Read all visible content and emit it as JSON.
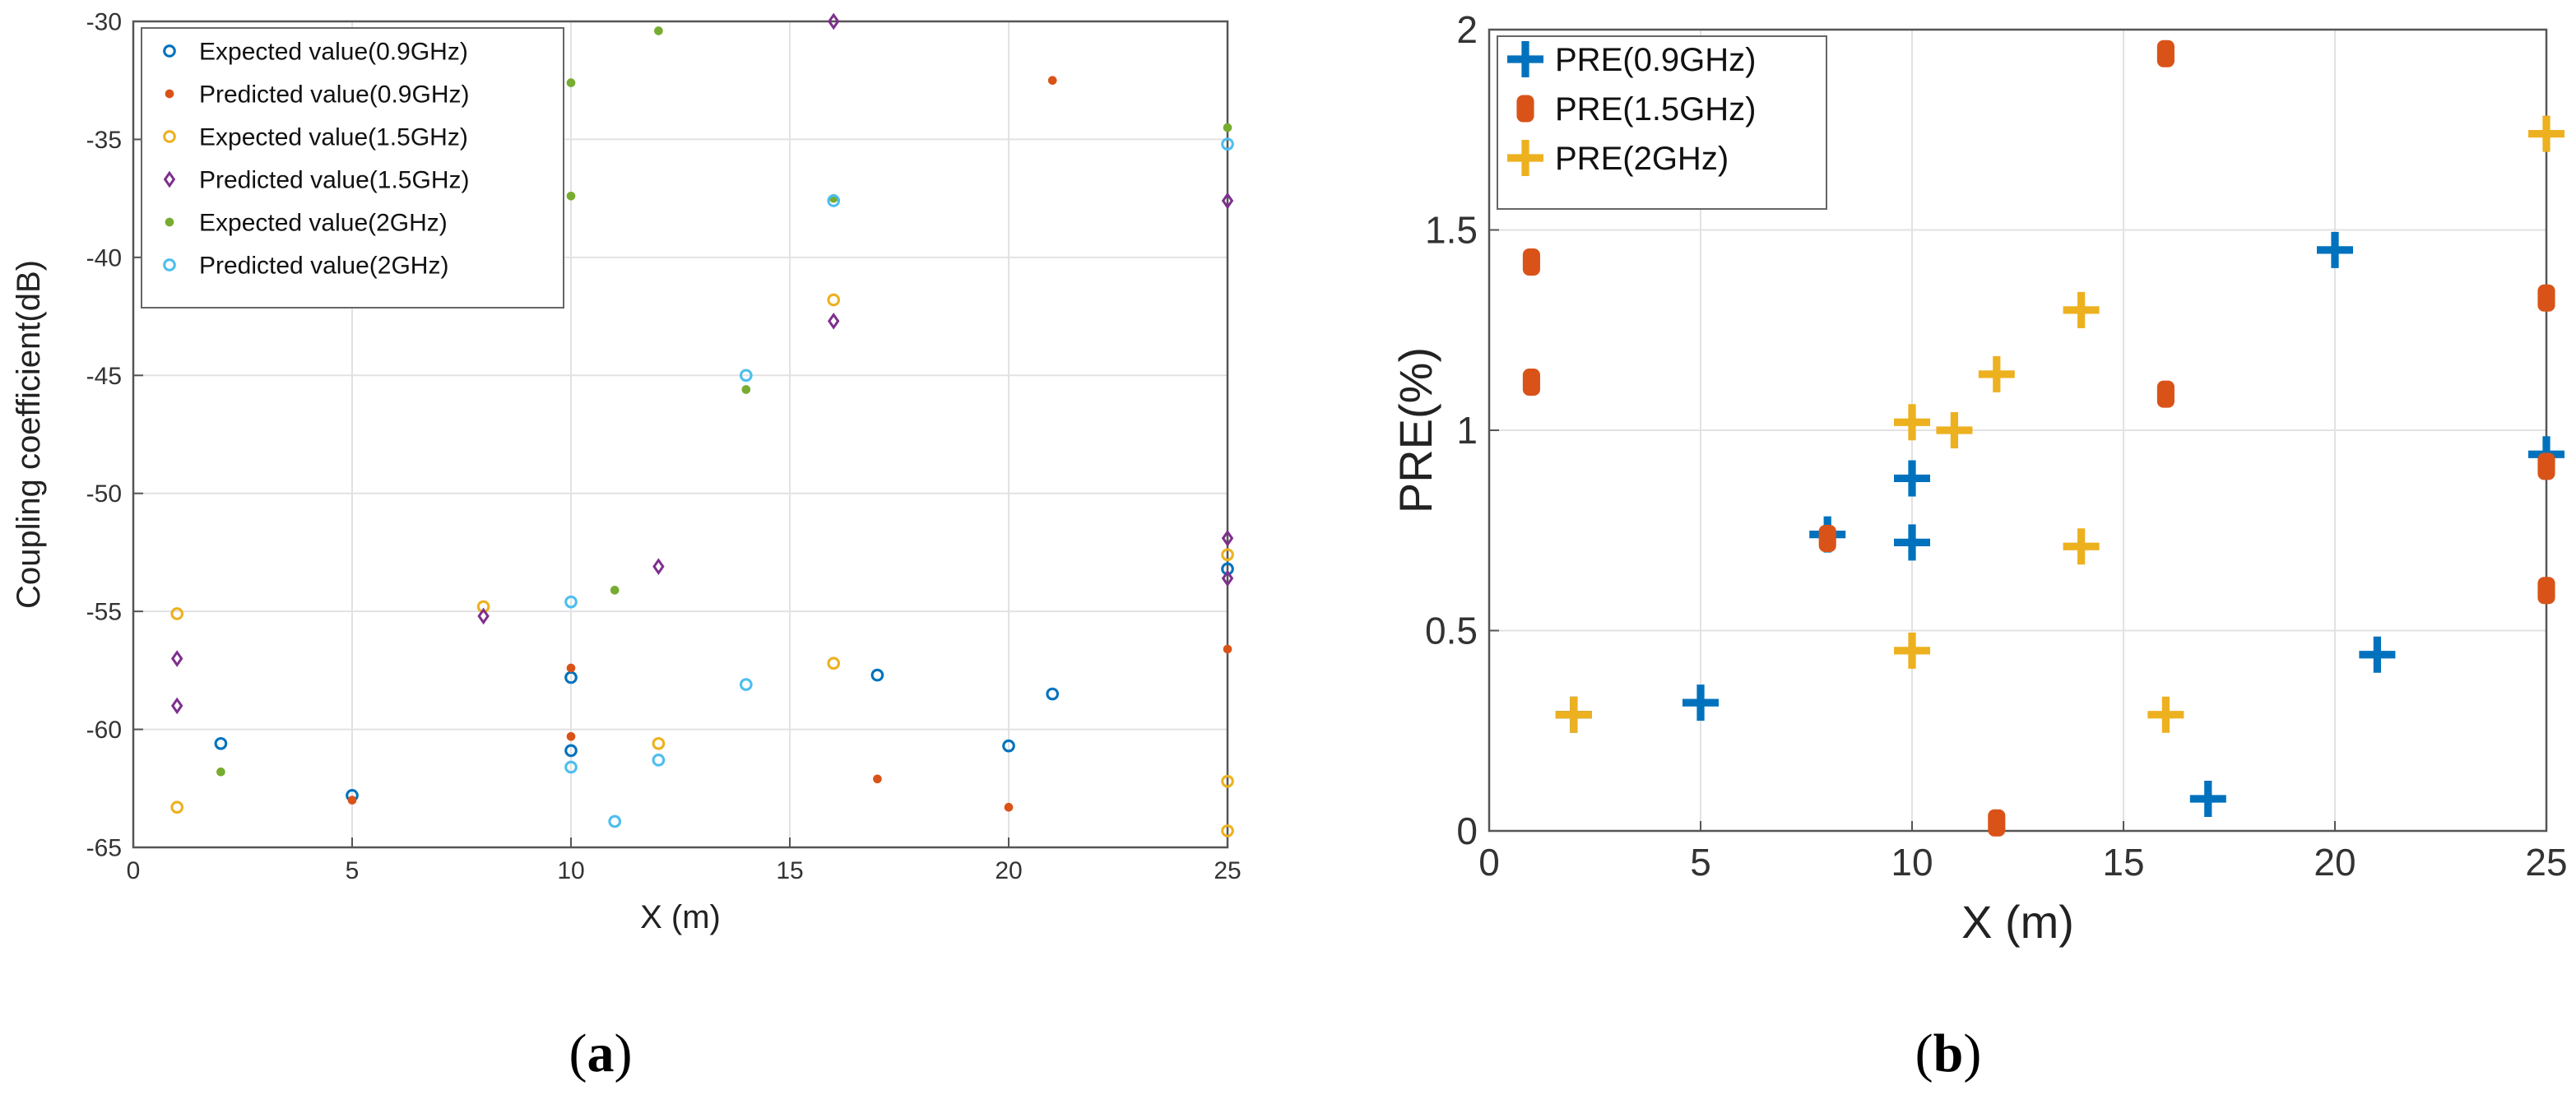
{
  "chart_data": [
    {
      "type": "scatter",
      "panel_label": "(a)",
      "panel_letter": "a",
      "xlabel": "X (m)",
      "ylabel": "Coupling coefficient(dB)",
      "xlim": [
        0,
        25
      ],
      "ylim": [
        -65,
        -30
      ],
      "xticks": [
        0,
        5,
        10,
        15,
        20,
        25
      ],
      "yticks": [
        -30,
        -35,
        -40,
        -45,
        -50,
        -55,
        -60,
        -65
      ],
      "grid": true,
      "legend_position": "top-left",
      "series": [
        {
          "name": "Expected value(0.9GHz)",
          "marker": "circle",
          "color": "#0072BD",
          "points": [
            [
              2,
              -60.6
            ],
            [
              5,
              -62.8
            ],
            [
              10,
              -57.8
            ],
            [
              10,
              -60.9
            ],
            [
              17,
              -57.7
            ],
            [
              20,
              -60.7
            ],
            [
              21,
              -58.5
            ],
            [
              25,
              -53.2
            ]
          ]
        },
        {
          "name": "Predicted value(0.9GHz)",
          "marker": "dot",
          "color": "#D95319",
          "points": [
            [
              5,
              -63.0
            ],
            [
              10,
              -57.4
            ],
            [
              10,
              -60.3
            ],
            [
              17,
              -62.1
            ],
            [
              20,
              -63.3
            ],
            [
              21,
              -32.5
            ],
            [
              25,
              -56.6
            ]
          ]
        },
        {
          "name": "Expected value(1.5GHz)",
          "marker": "circle",
          "color": "#EDB120",
          "points": [
            [
              1,
              -55.1
            ],
            [
              1,
              -63.3
            ],
            [
              8,
              -54.8
            ],
            [
              12,
              -60.6
            ],
            [
              16,
              -41.8
            ],
            [
              16,
              -57.2
            ],
            [
              25,
              -52.6
            ],
            [
              25,
              -62.2
            ],
            [
              25,
              -64.3
            ]
          ]
        },
        {
          "name": "Predicted value(1.5GHz)",
          "marker": "diamond",
          "color": "#7E2F8E",
          "points": [
            [
              1,
              -57.0
            ],
            [
              1,
              -59.0
            ],
            [
              8,
              -55.2
            ],
            [
              12,
              -53.1
            ],
            [
              16,
              -30.0
            ],
            [
              16,
              -42.7
            ],
            [
              25,
              -37.6
            ],
            [
              25,
              -51.9
            ],
            [
              25,
              -53.6
            ]
          ]
        },
        {
          "name": "Expected value(2GHz)",
          "marker": "dot",
          "color": "#77AC30",
          "points": [
            [
              2,
              -61.8
            ],
            [
              10,
              -32.6
            ],
            [
              10,
              -37.4
            ],
            [
              11,
              -54.1
            ],
            [
              12,
              -30.4
            ],
            [
              14,
              -45.6
            ],
            [
              16,
              -37.5
            ],
            [
              25,
              -34.5
            ]
          ]
        },
        {
          "name": "Predicted value(2GHz)",
          "marker": "circle",
          "color": "#4DBEEE",
          "points": [
            [
              10,
              -54.6
            ],
            [
              10,
              -61.6
            ],
            [
              11,
              -63.9
            ],
            [
              12,
              -61.3
            ],
            [
              14,
              -45.0
            ],
            [
              14,
              -58.1
            ],
            [
              16,
              -37.6
            ],
            [
              25,
              -35.2
            ]
          ]
        }
      ]
    },
    {
      "type": "scatter",
      "panel_label": "(b)",
      "panel_letter": "b",
      "xlabel": "X (m)",
      "ylabel": "PRE(%)",
      "xlim": [
        0,
        25
      ],
      "ylim": [
        0,
        2
      ],
      "xticks": [
        0,
        5,
        10,
        15,
        20,
        25
      ],
      "yticks": [
        0,
        0.5,
        1,
        1.5,
        2
      ],
      "grid": true,
      "legend_position": "top-left",
      "series": [
        {
          "name": "PRE(0.9GHz)",
          "marker": "plus",
          "color": "#0072BD",
          "points": [
            [
              2,
              0.29
            ],
            [
              5,
              0.32
            ],
            [
              8,
              0.74
            ],
            [
              10,
              0.88
            ],
            [
              10,
              0.72
            ],
            [
              17,
              0.08
            ],
            [
              20,
              1.45
            ],
            [
              21,
              0.44
            ],
            [
              25,
              0.94
            ]
          ]
        },
        {
          "name": "PRE(1.5GHz)",
          "marker": "bar",
          "color": "#D95319",
          "points": [
            [
              1,
              1.42
            ],
            [
              1,
              1.12
            ],
            [
              8,
              0.73
            ],
            [
              12,
              0.02
            ],
            [
              16,
              1.94
            ],
            [
              16,
              1.09
            ],
            [
              25,
              1.33
            ],
            [
              25,
              0.91
            ],
            [
              25,
              0.6
            ]
          ]
        },
        {
          "name": "PRE(2GHz)",
          "marker": "plus",
          "color": "#EDB120",
          "points": [
            [
              2,
              0.29
            ],
            [
              10,
              1.02
            ],
            [
              10,
              0.45
            ],
            [
              11,
              1.0
            ],
            [
              12,
              1.14
            ],
            [
              14,
              1.3
            ],
            [
              14,
              0.71
            ],
            [
              16,
              0.29
            ],
            [
              25,
              1.74
            ]
          ]
        }
      ]
    }
  ]
}
